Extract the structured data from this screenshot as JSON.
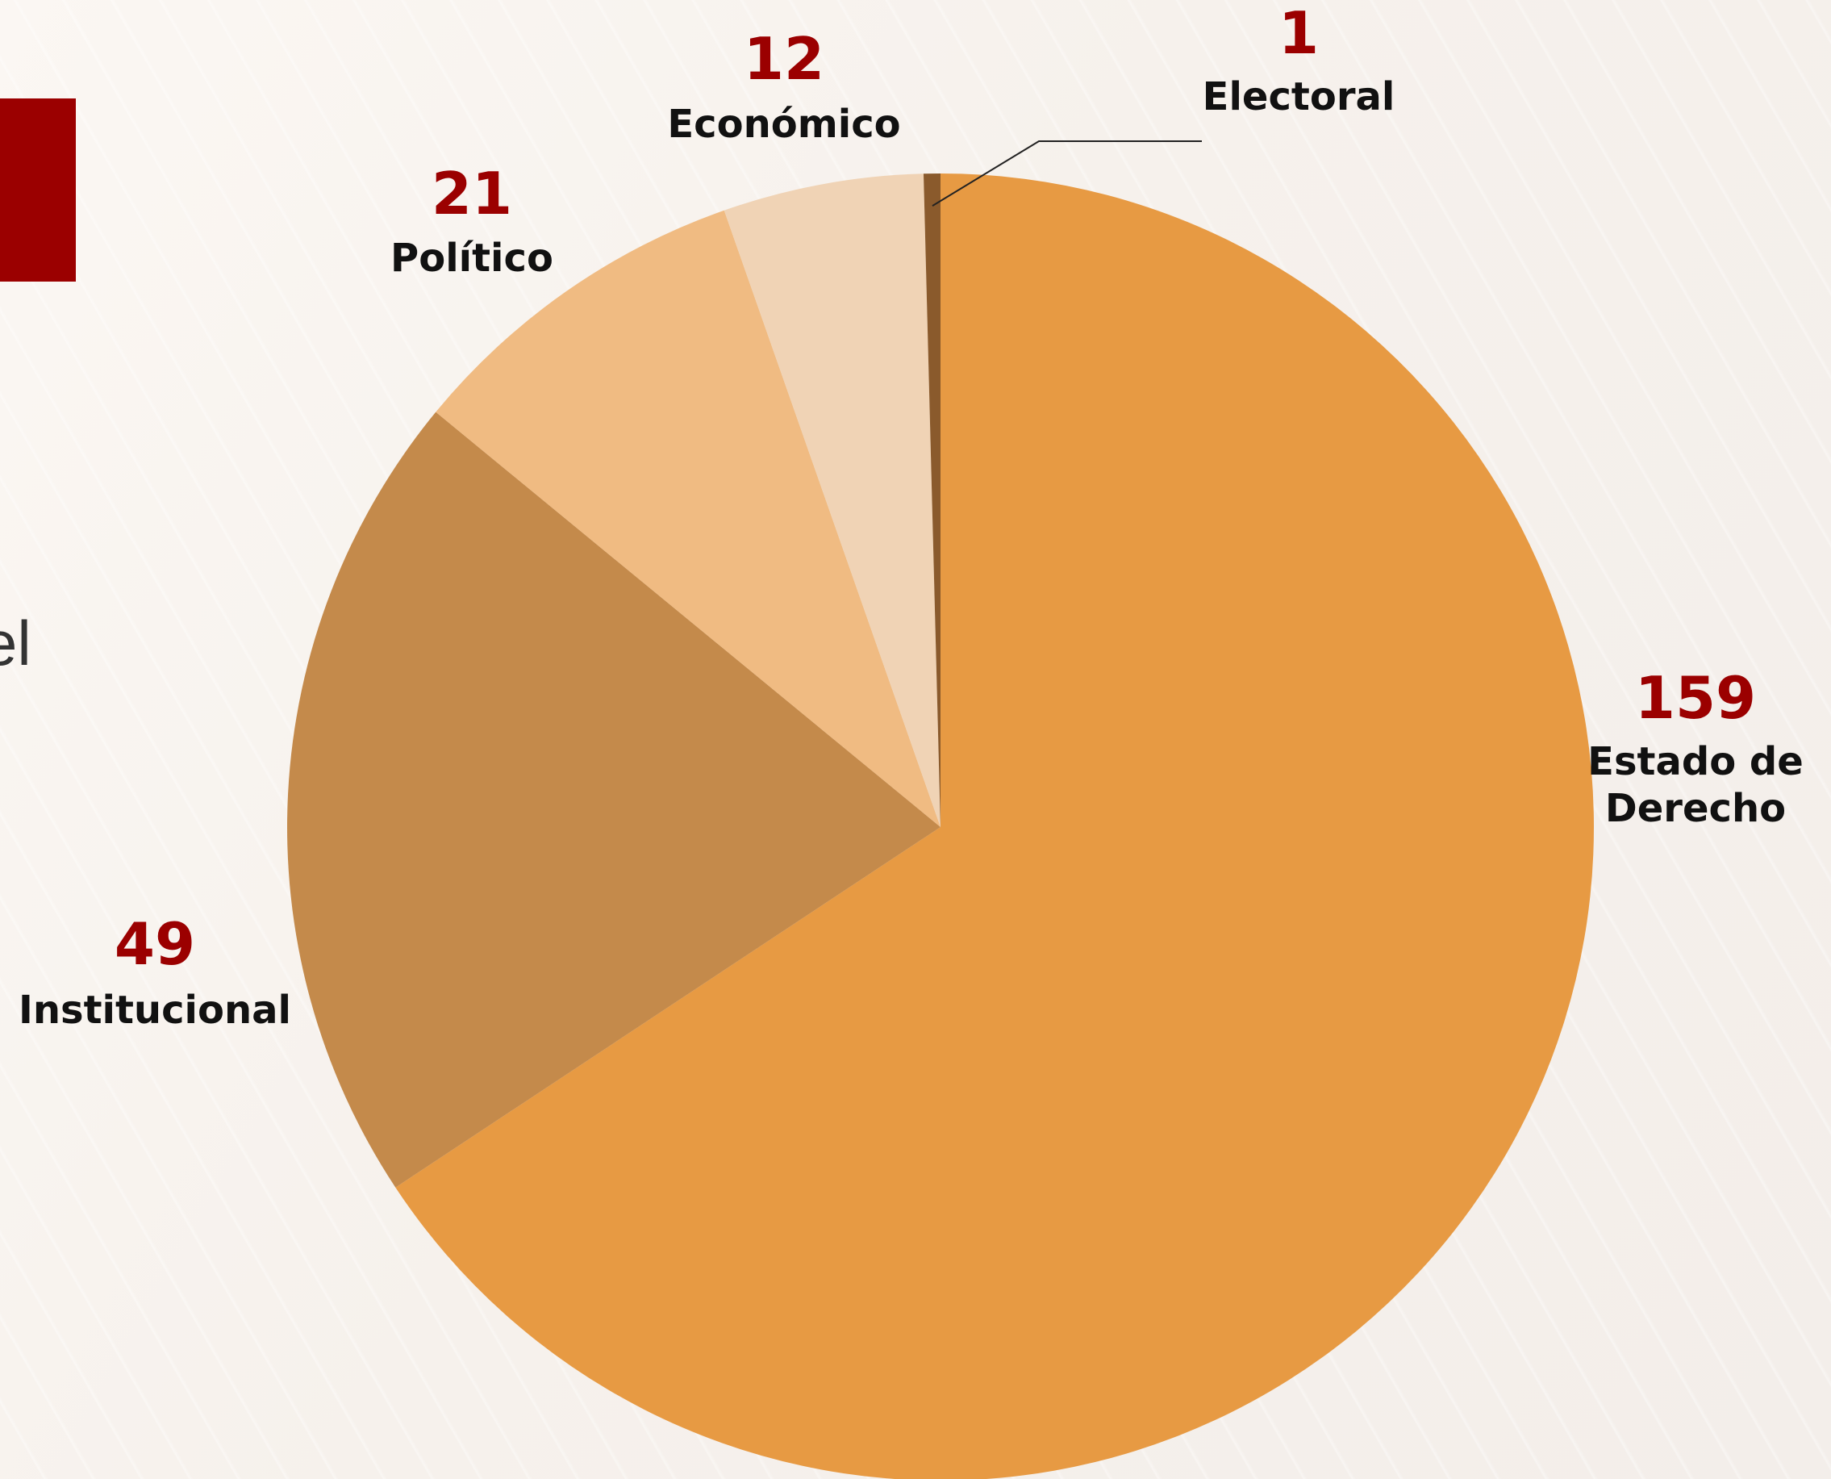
{
  "colors": {
    "accent_red": "#9b0000",
    "background": "#f6f1ec"
  },
  "page": {
    "cut_text": "el"
  },
  "chart_data": {
    "type": "pie",
    "start_angle_deg": 0,
    "direction": "clockwise",
    "slices": [
      {
        "label": "Estado de Derecho",
        "label_lines": [
          "Estado de",
          "Derecho"
        ],
        "value": 159,
        "color": "#e79a43"
      },
      {
        "label": "Institucional",
        "label_lines": [
          "Institucional"
        ],
        "value": 49,
        "color": "#c48a4b"
      },
      {
        "label": "Político",
        "label_lines": [
          "Político"
        ],
        "value": 21,
        "color": "#f0bb82"
      },
      {
        "label": "Económico",
        "label_lines": [
          "Económico"
        ],
        "value": 12,
        "color": "#f0d3b5"
      },
      {
        "label": "Electoral",
        "label_lines": [
          "Electoral"
        ],
        "value": 1,
        "color": "#8a5a2c"
      }
    ]
  }
}
